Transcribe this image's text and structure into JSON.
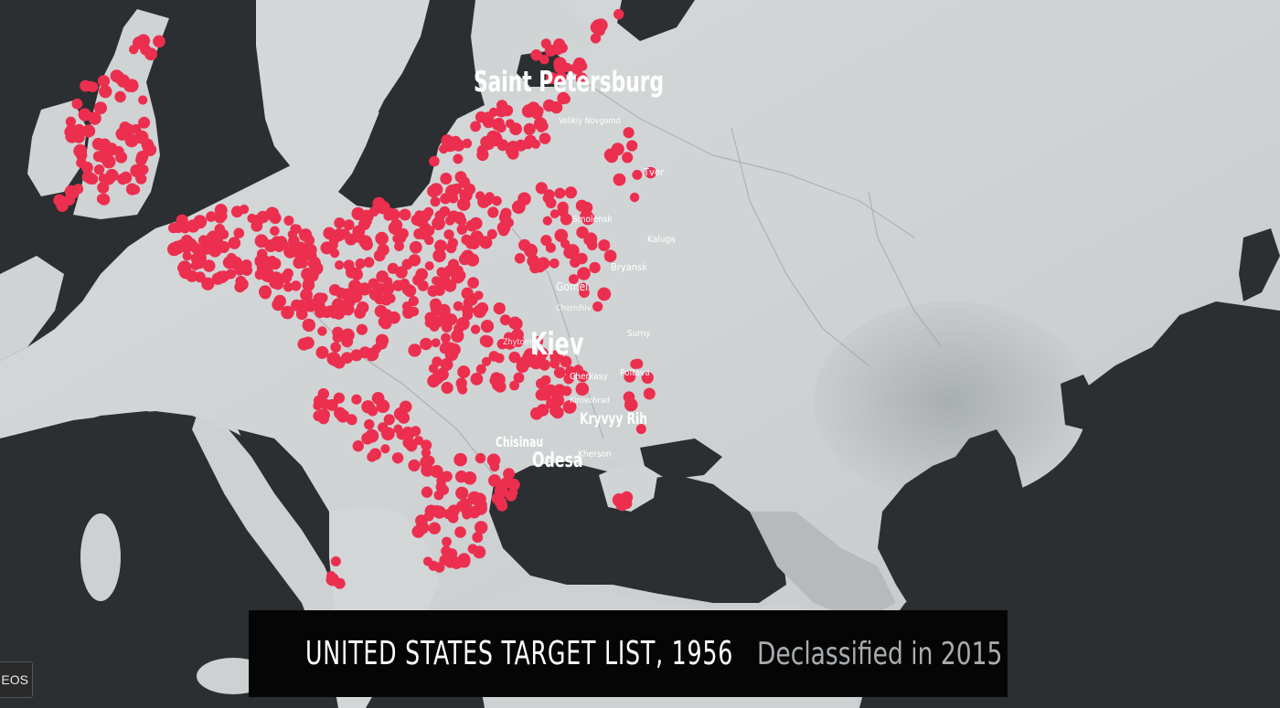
{
  "caption": {
    "title": "UNITED STATES TARGET LIST, 1956",
    "subtitle": "Declassified in 2015"
  },
  "overlay": {
    "videos_chip": "EOS"
  },
  "map": {
    "colors": {
      "sea": "#2b2f31",
      "land": "#c8cccd",
      "land_light": "#dfe2e2",
      "target": "#ec2f4f"
    },
    "target_icon": "circle-dot",
    "labels": [
      {
        "name": "saint-petersburg",
        "text": "Saint Petersburg"
      },
      {
        "name": "velikiy-novgorod",
        "text": "Velikiy Novgorod"
      },
      {
        "name": "tver",
        "text": "Tver"
      },
      {
        "name": "smolensk",
        "text": "Smolensk"
      },
      {
        "name": "kaluga",
        "text": "Kaluga"
      },
      {
        "name": "bryansk",
        "text": "Bryansk"
      },
      {
        "name": "gomel",
        "text": "Gomel"
      },
      {
        "name": "chernihiv",
        "text": "Chernihiv"
      },
      {
        "name": "zhytomyr",
        "text": "Zhytomyr"
      },
      {
        "name": "kiev",
        "text": "Kiev"
      },
      {
        "name": "sumy",
        "text": "Sumy"
      },
      {
        "name": "cherkasy",
        "text": "Cherkasy"
      },
      {
        "name": "poltava",
        "text": "Poltava"
      },
      {
        "name": "kirovohrad",
        "text": "Kirovohrad"
      },
      {
        "name": "kryvyy-rih",
        "text": "Kryvyy Rih"
      },
      {
        "name": "chisinau",
        "text": "Chisinau"
      },
      {
        "name": "odesa",
        "text": "Odesa"
      },
      {
        "name": "kherson",
        "text": "Kherson"
      }
    ]
  }
}
